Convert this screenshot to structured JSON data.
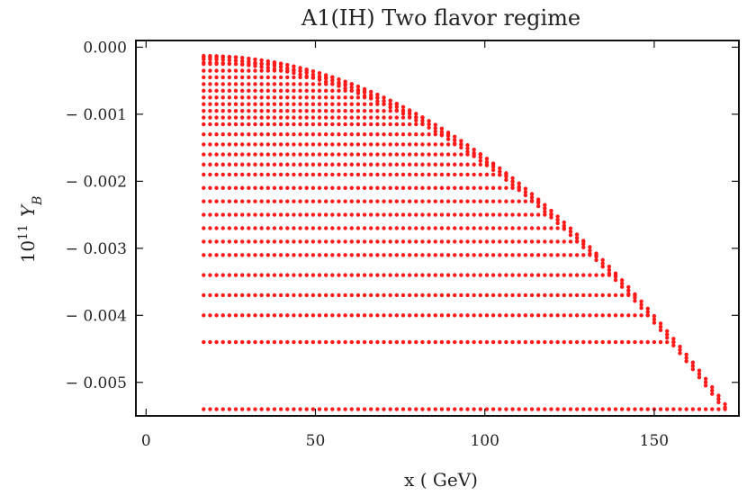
{
  "chart_data": {
    "type": "scatter",
    "title": "A1(IH) Two flavor regime",
    "xlabel": "x ( GeV)",
    "ylabel_base": "10",
    "ylabel_exp": "11",
    "ylabel_var": "Y",
    "ylabel_sub": "B",
    "xlim": [
      -3,
      175
    ],
    "ylim": [
      -0.0055,
      0.0001
    ],
    "xticks": [
      0,
      50,
      100,
      150
    ],
    "xtick_labels": [
      "0",
      "50",
      "100",
      "150"
    ],
    "yticks": [
      0.0,
      -0.001,
      -0.002,
      -0.003,
      -0.004,
      -0.005
    ],
    "ytick_labels": [
      "0.000",
      "− 0.001",
      "− 0.002",
      "− 0.003",
      "− 0.004",
      "− 0.005"
    ],
    "series": [
      {
        "color": "#ff1a1a",
        "pattern": {
          "x_start": 17,
          "x_end": 172,
          "x_step": 1.9,
          "y_envelope_top": -0.00013,
          "y_envelope_end": -0.0054,
          "y_bottom": -0.0054,
          "band_levels": [
            -0.00015,
            -0.00025,
            -0.00035,
            -0.00045,
            -0.00055,
            -0.00065,
            -0.00075,
            -0.00085,
            -0.00095,
            -0.00105,
            -0.00115,
            -0.0013,
            -0.00145,
            -0.0016,
            -0.00175,
            -0.0019,
            -0.0021,
            -0.0023,
            -0.0025,
            -0.0027,
            -0.0029,
            -0.0031,
            -0.0034,
            -0.0037,
            -0.004,
            -0.0044,
            -0.0054
          ]
        }
      }
    ],
    "grid": false,
    "legend": "none"
  }
}
